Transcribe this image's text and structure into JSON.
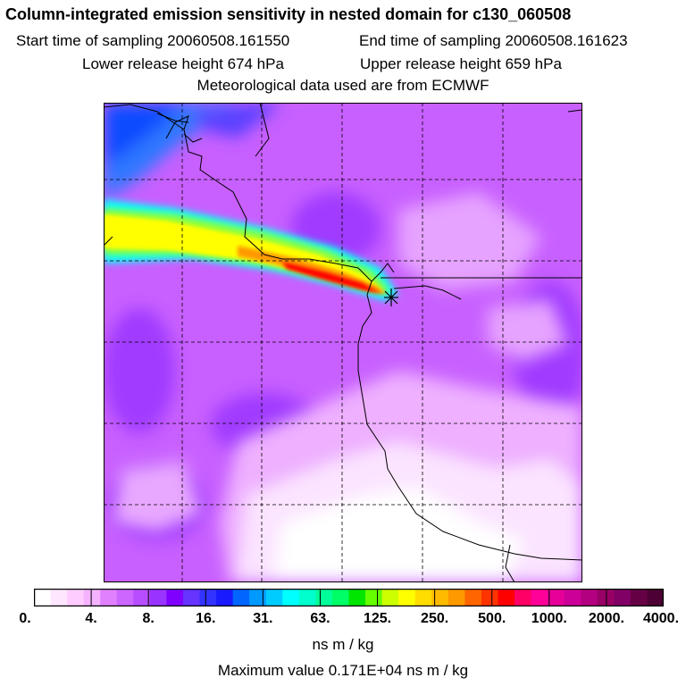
{
  "title": "Column-integrated emission sensitivity in nested domain for c130_060508",
  "sampling": {
    "start_label": "Start time of sampling",
    "start_value": "20060508.161550",
    "end_label": "End time of sampling",
    "end_value": "20060508.161623"
  },
  "release": {
    "lower_label": "Lower release height",
    "lower_value": "674 hPa",
    "upper_label": "Upper release height",
    "upper_value": "659 hPa"
  },
  "met_note": "Meteorological data used are from ECMWF",
  "legend": {
    "ticks": [
      "0.",
      "4.",
      "8.",
      "16.",
      "31.",
      "63.",
      "125.",
      "250.",
      "500.",
      "1000.",
      "2000.",
      "4000."
    ],
    "colors": [
      "#ffffff",
      "#ffe6ff",
      "#ffccff",
      "#f5b3ff",
      "#e080ff",
      "#cc66ff",
      "#b84dff",
      "#9933ff",
      "#8000ff",
      "#6633ff",
      "#3333ff",
      "#1a1aff",
      "#0066ff",
      "#0099ff",
      "#00ccff",
      "#00ffff",
      "#00ffcc",
      "#00ff99",
      "#00ff66",
      "#00e600",
      "#66ff00",
      "#ccff00",
      "#ffff00",
      "#ffdd00",
      "#ffbb00",
      "#ff9900",
      "#ff6600",
      "#ff3300",
      "#ff0000",
      "#ff0066",
      "#ff0099",
      "#e60099",
      "#cc0099",
      "#b30080",
      "#990066",
      "#800066",
      "#660044",
      "#4d0033"
    ],
    "units": "ns m / kg"
  },
  "max_value_label": "Maximum value",
  "max_value": "0.171E+04 ns m / kg",
  "map": {
    "background_color": "#c860ff",
    "plume_colors": [
      "#00ffff",
      "#99ff33",
      "#ffff00",
      "#ff9900",
      "#ff0000"
    ],
    "cold_region_color": "#2f78ff",
    "release_marker": "cross-marker"
  }
}
